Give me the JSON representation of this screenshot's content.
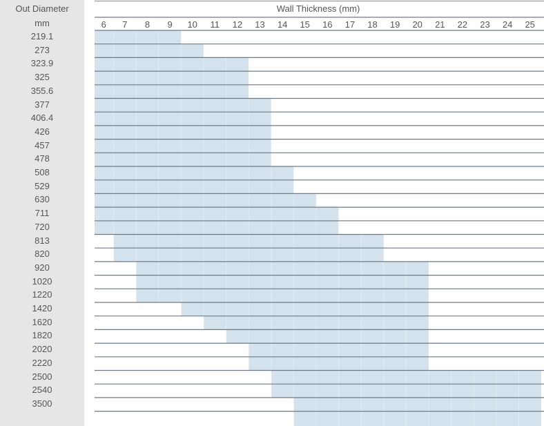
{
  "chart_data": {
    "type": "table",
    "row_header_title": "Out Diameter",
    "row_header_unit": "mm",
    "column_header_title": "Wall Thickness (mm)",
    "columns": [
      6,
      7,
      8,
      9,
      10,
      11,
      12,
      13,
      14,
      15,
      16,
      17,
      18,
      19,
      20,
      21,
      22,
      23,
      24,
      25
    ],
    "rows": [
      {
        "od": "219.1",
        "min": 6,
        "max": 9
      },
      {
        "od": "273",
        "min": 6,
        "max": 10
      },
      {
        "od": "323.9",
        "min": 6,
        "max": 12
      },
      {
        "od": "325",
        "min": 6,
        "max": 12
      },
      {
        "od": "355.6",
        "min": 6,
        "max": 12
      },
      {
        "od": "377",
        "min": 6,
        "max": 13
      },
      {
        "od": "406.4",
        "min": 6,
        "max": 13
      },
      {
        "od": "426",
        "min": 6,
        "max": 13
      },
      {
        "od": "457",
        "min": 6,
        "max": 13
      },
      {
        "od": "478",
        "min": 6,
        "max": 13
      },
      {
        "od": "508",
        "min": 6,
        "max": 14
      },
      {
        "od": "529",
        "min": 6,
        "max": 14
      },
      {
        "od": "630",
        "min": 6,
        "max": 15
      },
      {
        "od": "711",
        "min": 6,
        "max": 16
      },
      {
        "od": "720",
        "min": 6,
        "max": 16
      },
      {
        "od": "813",
        "min": 7,
        "max": 18
      },
      {
        "od": "820",
        "min": 7,
        "max": 18
      },
      {
        "od": "920",
        "min": 8,
        "max": 20
      },
      {
        "od": "1020",
        "min": 8,
        "max": 20
      },
      {
        "od": "1220",
        "min": 8,
        "max": 20
      },
      {
        "od": "1420",
        "min": 10,
        "max": 20
      },
      {
        "od": "1620",
        "min": 11,
        "max": 20
      },
      {
        "od": "1820",
        "min": 12,
        "max": 20
      },
      {
        "od": "2020",
        "min": 13,
        "max": 20
      },
      {
        "od": "2220",
        "min": 13,
        "max": 20
      },
      {
        "od": "2500",
        "min": 14,
        "max": 25
      },
      {
        "od": "2540",
        "min": 14,
        "max": 25
      },
      {
        "od": "3500",
        "min": 15,
        "max": 25
      }
    ],
    "colors": {
      "fill": "#d3e2ec",
      "line": "#6f7a85",
      "header_bg": "#e6e6e6",
      "text": "#555555"
    }
  }
}
